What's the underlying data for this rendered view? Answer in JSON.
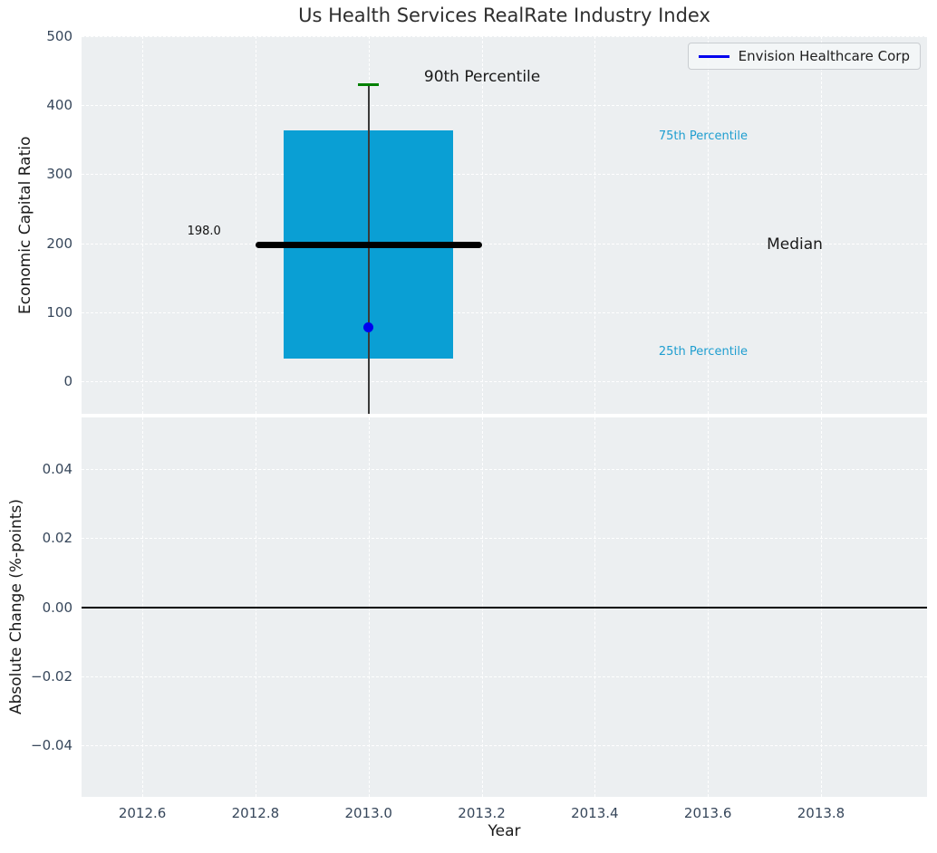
{
  "figure": {
    "title": "Us Health Services RealRate Industry Index"
  },
  "legend": {
    "label": "Envision Healthcare Corp",
    "line_color": "#0000ee"
  },
  "colors": {
    "axes_background": "#eceff1",
    "gridline": "#ffffff",
    "box_fill": "#0a9fd4",
    "median_line": "#000000",
    "whisker": "#3a3a3a",
    "cap_90th": "#008000",
    "point": "#0000ee",
    "percentile_label": "#1f9ed0",
    "tick_label": "#37475b",
    "axis_label": "#1a1a1a",
    "title": "#2e2e2e",
    "zero_line": "#000000"
  },
  "chart_data": [
    {
      "type": "boxplot",
      "ylabel": "Economic Capital Ratio",
      "xlim": [
        2012.4925,
        2013.9875
      ],
      "ylim": [
        -47.2,
        500
      ],
      "xtick_values": [
        2012.6,
        2012.8,
        2013.0,
        2013.2,
        2013.4,
        2013.6,
        2013.8
      ],
      "xtick_labels": [
        "2012.6",
        "2012.8",
        "2013.0",
        "2013.2",
        "2013.4",
        "2013.6",
        "2013.8"
      ],
      "show_xtick_labels": false,
      "ytick_values": [
        0,
        100,
        200,
        300,
        400,
        500
      ],
      "ytick_labels": [
        "0",
        "100",
        "200",
        "300",
        "400",
        "500"
      ],
      "grid": true,
      "legend_position": "upper right",
      "box": {
        "x": 2013.0,
        "box_width": 0.3,
        "median": 198.0,
        "p25": 33,
        "p75": 363,
        "p90": 430,
        "whisker_low_clipped": true,
        "median_line_width": 0.4,
        "cap_width": 0.036
      },
      "points": [
        {
          "name": "Envision Healthcare Corp",
          "x": 2013.0,
          "y": 78,
          "color": "#0000ee"
        }
      ],
      "annotations": [
        {
          "text": "90th Percentile",
          "x": 2013.098,
          "y": 441,
          "ha": "left",
          "size": 17,
          "color": "#1a1a1a"
        },
        {
          "text": "75th Percentile",
          "x": 2013.513,
          "y": 354,
          "ha": "left",
          "size": 13,
          "color": "#1f9ed0"
        },
        {
          "text": "Median",
          "x": 2013.704,
          "y": 198,
          "ha": "left",
          "size": 17,
          "color": "#1a1a1a"
        },
        {
          "text": "25th Percentile",
          "x": 2013.513,
          "y": 42,
          "ha": "left",
          "size": 13,
          "color": "#1f9ed0"
        },
        {
          "text": "198.0",
          "x": 2012.739,
          "y": 217,
          "ha": "right",
          "size": 13,
          "color": "#111111"
        }
      ]
    },
    {
      "type": "line",
      "xlabel": "Year",
      "ylabel": "Absolute Change (%-points)",
      "xlim": [
        2012.4925,
        2013.9875
      ],
      "ylim": [
        -0.0551,
        0.0551
      ],
      "xtick_values": [
        2012.6,
        2012.8,
        2013.0,
        2013.2,
        2013.4,
        2013.6,
        2013.8
      ],
      "xtick_labels": [
        "2012.6",
        "2012.8",
        "2013.0",
        "2013.2",
        "2013.4",
        "2013.6",
        "2013.8"
      ],
      "show_xtick_labels": true,
      "ytick_values": [
        0.04,
        0.02,
        0.0,
        -0.02,
        -0.04
      ],
      "ytick_labels": [
        "0.04",
        "0.02",
        "0.00",
        "−0.02",
        "−0.04"
      ],
      "grid": true,
      "zero_line": true,
      "series": []
    }
  ]
}
